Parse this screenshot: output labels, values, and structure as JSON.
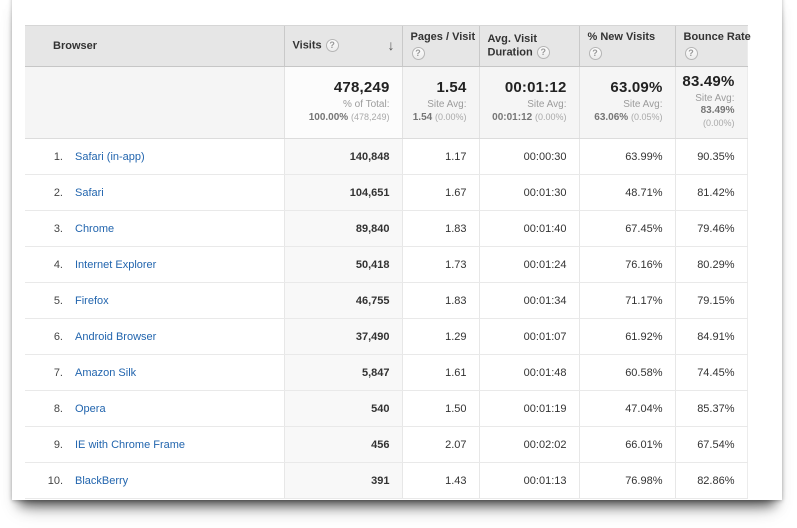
{
  "icons": {
    "help": "?",
    "sort_desc": "↓"
  },
  "table": {
    "columns": [
      {
        "key": "browser",
        "label": "Browser",
        "help": false
      },
      {
        "key": "visits",
        "label": "Visits",
        "help": true,
        "sorted": "desc"
      },
      {
        "key": "pages",
        "label": "Pages / Visit",
        "help": true
      },
      {
        "key": "duration",
        "label": "Avg. Visit Duration",
        "help": true
      },
      {
        "key": "new",
        "label": "% New Visits",
        "help": true
      },
      {
        "key": "bounce",
        "label": "Bounce Rate",
        "help": true
      }
    ],
    "summary": {
      "visits": {
        "value": "478,249",
        "avg_label": "% of Total:",
        "avg_value": "100.00%",
        "avg_paren": "(478,249)"
      },
      "pages": {
        "value": "1.54",
        "avg_label": "Site Avg:",
        "avg_value": "1.54",
        "avg_paren": "(0.00%)"
      },
      "duration": {
        "value": "00:01:12",
        "avg_label": "Site Avg:",
        "avg_value": "00:01:12",
        "avg_paren": "(0.00%)"
      },
      "new": {
        "value": "63.09%",
        "avg_label": "Site Avg:",
        "avg_value": "63.06%",
        "avg_paren": "(0.05%)"
      },
      "bounce": {
        "value": "83.49%",
        "avg_label": "Site Avg:",
        "avg_value": "83.49%",
        "avg_paren": "(0.00%)"
      }
    },
    "rows": [
      {
        "rank": "1.",
        "browser": "Safari (in-app)",
        "visits": "140,848",
        "pages": "1.17",
        "duration": "00:00:30",
        "new": "63.99%",
        "bounce": "90.35%"
      },
      {
        "rank": "2.",
        "browser": "Safari",
        "visits": "104,651",
        "pages": "1.67",
        "duration": "00:01:30",
        "new": "48.71%",
        "bounce": "81.42%"
      },
      {
        "rank": "3.",
        "browser": "Chrome",
        "visits": "89,840",
        "pages": "1.83",
        "duration": "00:01:40",
        "new": "67.45%",
        "bounce": "79.46%"
      },
      {
        "rank": "4.",
        "browser": "Internet Explorer",
        "visits": "50,418",
        "pages": "1.73",
        "duration": "00:01:24",
        "new": "76.16%",
        "bounce": "80.29%"
      },
      {
        "rank": "5.",
        "browser": "Firefox",
        "visits": "46,755",
        "pages": "1.83",
        "duration": "00:01:34",
        "new": "71.17%",
        "bounce": "79.15%"
      },
      {
        "rank": "6.",
        "browser": "Android Browser",
        "visits": "37,490",
        "pages": "1.29",
        "duration": "00:01:07",
        "new": "61.92%",
        "bounce": "84.91%"
      },
      {
        "rank": "7.",
        "browser": "Amazon Silk",
        "visits": "5,847",
        "pages": "1.61",
        "duration": "00:01:48",
        "new": "60.58%",
        "bounce": "74.45%"
      },
      {
        "rank": "8.",
        "browser": "Opera",
        "visits": "540",
        "pages": "1.50",
        "duration": "00:01:19",
        "new": "47.04%",
        "bounce": "85.37%"
      },
      {
        "rank": "9.",
        "browser": "IE with Chrome Frame",
        "visits": "456",
        "pages": "2.07",
        "duration": "00:02:02",
        "new": "66.01%",
        "bounce": "67.54%"
      },
      {
        "rank": "10.",
        "browser": "BlackBerry",
        "visits": "391",
        "pages": "1.43",
        "duration": "00:01:13",
        "new": "76.98%",
        "bounce": "82.86%"
      }
    ]
  }
}
